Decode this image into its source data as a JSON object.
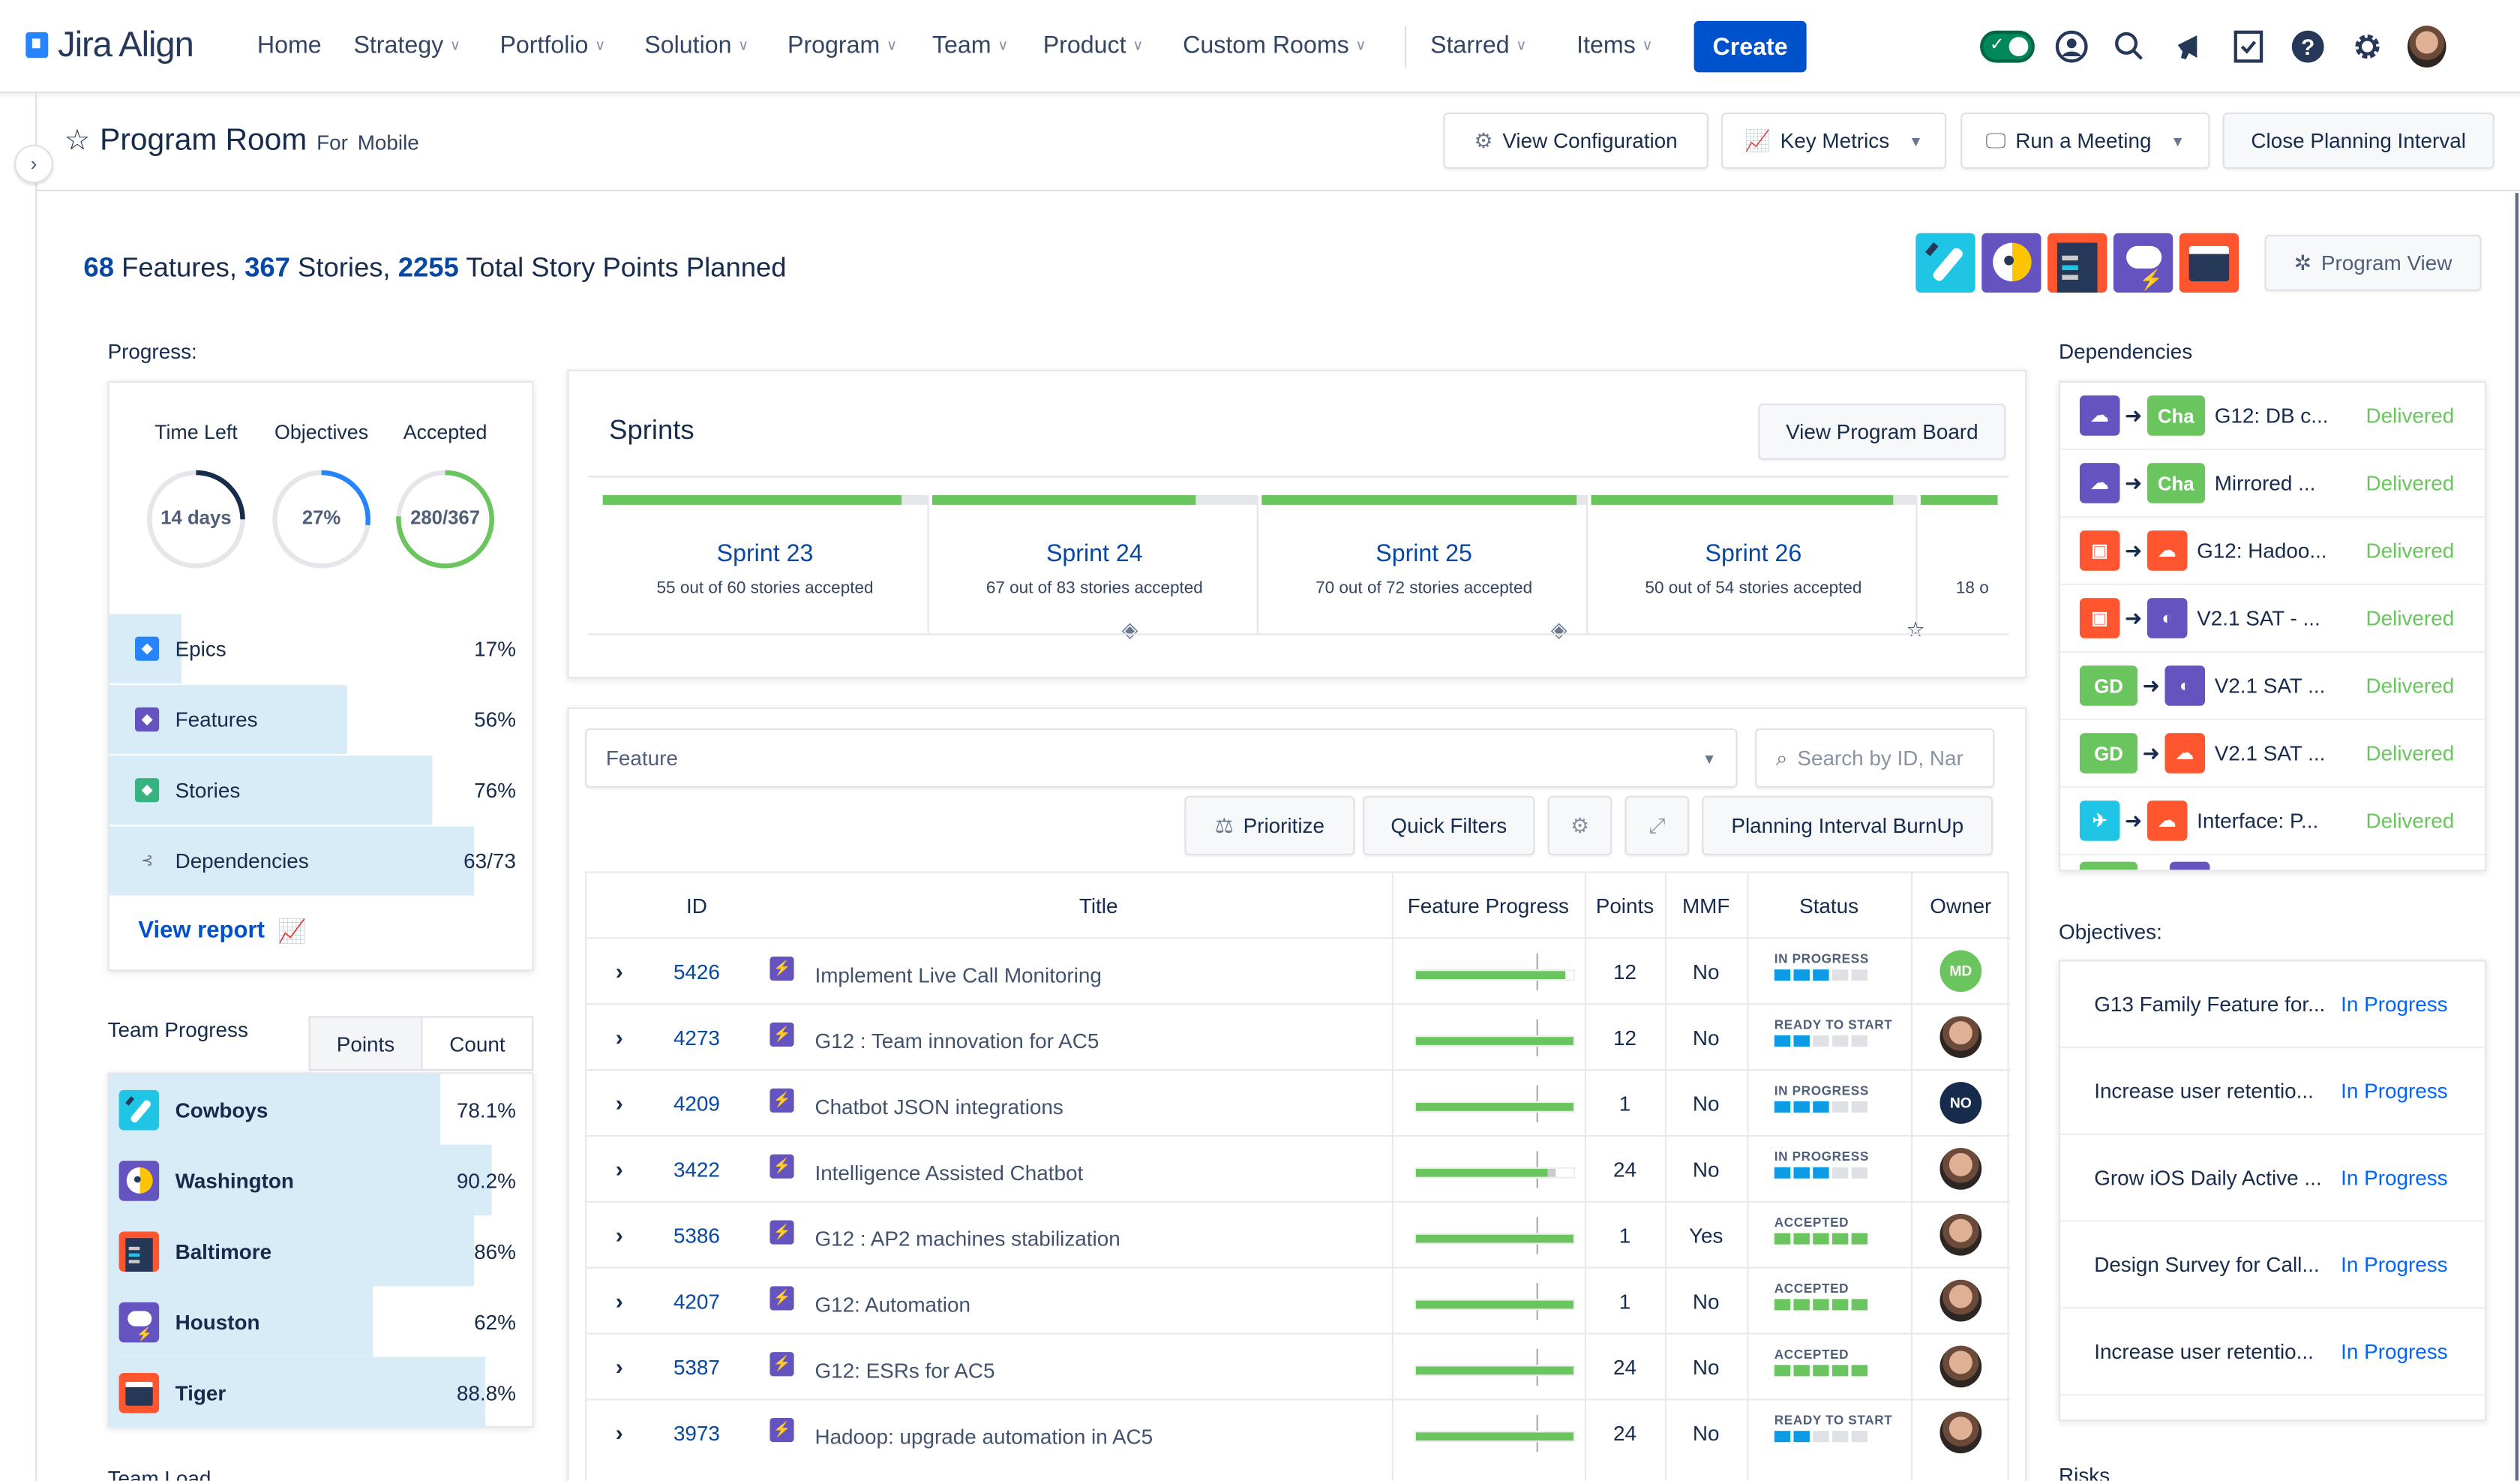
{
  "nav": {
    "logo": "Jira Align",
    "items": [
      "Home",
      "Strategy",
      "Portfolio",
      "Solution",
      "Program",
      "Team",
      "Product",
      "Custom Rooms",
      "Starred",
      "Items"
    ],
    "create": "Create"
  },
  "header": {
    "title": "Program Room",
    "for_label": "For",
    "for_value": "Mobile",
    "buttons": {
      "view_config": "View Configuration",
      "key_metrics": "Key Metrics",
      "run_meeting": "Run a Meeting",
      "close_pi": "Close Planning Interval"
    }
  },
  "summary": {
    "features": "68",
    "features_label": " Features, ",
    "stories": "367",
    "stories_label": " Stories, ",
    "points": "2255",
    "points_label": " Total Story Points Planned"
  },
  "program_view": "Program View",
  "progress": {
    "label": "Progress:",
    "rings": [
      {
        "label": "Time Left",
        "value": "14 days",
        "fraction": 0.25,
        "color": "#172b4d"
      },
      {
        "label": "Objectives",
        "value": "27%",
        "fraction": 0.27,
        "color": "#2684ff"
      },
      {
        "label": "Accepted",
        "value": "280/367",
        "fraction": 0.76,
        "color": "#6bc55e"
      }
    ],
    "rows": [
      {
        "label": "Epics",
        "value": "17%",
        "fraction": 0.17,
        "color": "#2684ff",
        "icon": "epic-icon"
      },
      {
        "label": "Features",
        "value": "56%",
        "fraction": 0.56,
        "color": "#6554c0",
        "icon": "feature-icon"
      },
      {
        "label": "Stories",
        "value": "76%",
        "fraction": 0.76,
        "color": "#36b37e",
        "icon": "story-icon"
      },
      {
        "label": "Dependencies",
        "value": "63/73",
        "fraction": 0.86,
        "color": "#8993a4",
        "icon": "dependency-icon"
      }
    ],
    "view_report": "View report"
  },
  "team_progress": {
    "label": "Team Progress",
    "tabs": [
      "Points",
      "Count"
    ],
    "teams": [
      {
        "name": "Cowboys",
        "value": "78.1%",
        "fraction": 0.781,
        "color": "#1ec5e5"
      },
      {
        "name": "Washington",
        "value": "90.2%",
        "fraction": 0.902,
        "color": "#6554c0"
      },
      {
        "name": "Baltimore",
        "value": "86%",
        "fraction": 0.86,
        "color": "#ff5630"
      },
      {
        "name": "Houston",
        "value": "62%",
        "fraction": 0.62,
        "color": "#6554c0"
      },
      {
        "name": "Tiger",
        "value": "88.8%",
        "fraction": 0.888,
        "color": "#ff5630"
      }
    ]
  },
  "team_load_label": "Team Load",
  "sprints": {
    "title": "Sprints",
    "view_board": "View Program Board",
    "items": [
      {
        "name": "Sprint 23",
        "sub": "55 out of 60 stories accepted",
        "fraction": 0.92
      },
      {
        "name": "Sprint 24",
        "sub": "67 out of 83 stories accepted",
        "fraction": 0.81
      },
      {
        "name": "Sprint 25",
        "sub": "70 out of 72 stories accepted",
        "fraction": 0.97
      },
      {
        "name": "Sprint 26",
        "sub": "50 out of 54 stories accepted",
        "fraction": 0.93
      },
      {
        "name": "",
        "sub": "18 o",
        "fraction": 1
      }
    ]
  },
  "features": {
    "select_value": "Feature",
    "search_placeholder": "Search by ID, Nar",
    "buttons": {
      "prioritize": "Prioritize",
      "quick_filters": "Quick Filters",
      "burnup": "Planning Interval BurnUp"
    },
    "columns": [
      "ID",
      "Title",
      "Feature Progress",
      "Points",
      "MMF",
      "Status",
      "Owner"
    ],
    "rows": [
      {
        "id": "5426",
        "title": "Implement Live Call Monitoring",
        "progress": 0.95,
        "extra": 0,
        "points": "12",
        "mmf": "No",
        "status": "IN PROGRESS",
        "segs": 3,
        "owner": "MD",
        "owner_color": "#6bc55e"
      },
      {
        "id": "4273",
        "title": "G12 : Team innovation for AC5",
        "progress": 1,
        "extra": 0,
        "points": "12",
        "mmf": "No",
        "status": "READY TO START",
        "segs": 2,
        "owner": "",
        "owner_color": ""
      },
      {
        "id": "4209",
        "title": "Chatbot JSON integrations",
        "progress": 1,
        "extra": 0,
        "points": "1",
        "mmf": "No",
        "status": "IN PROGRESS",
        "segs": 3,
        "owner": "NO",
        "owner_color": "#172b4d"
      },
      {
        "id": "3422",
        "title": "Intelligence Assisted Chatbot",
        "progress": 0.84,
        "extra": 0.05,
        "points": "24",
        "mmf": "No",
        "status": "IN PROGRESS",
        "segs": 3,
        "owner": "",
        "owner_color": ""
      },
      {
        "id": "5386",
        "title": "G12 : AP2 machines stabilization",
        "progress": 1,
        "extra": 0,
        "points": "1",
        "mmf": "Yes",
        "status": "ACCEPTED",
        "segs": 5,
        "owner": "",
        "owner_color": ""
      },
      {
        "id": "4207",
        "title": "G12: Automation",
        "progress": 1,
        "extra": 0,
        "points": "1",
        "mmf": "No",
        "status": "ACCEPTED",
        "segs": 5,
        "owner": "",
        "owner_color": ""
      },
      {
        "id": "5387",
        "title": "G12: ESRs for AC5",
        "progress": 1,
        "extra": 0,
        "points": "24",
        "mmf": "No",
        "status": "ACCEPTED",
        "segs": 5,
        "owner": "",
        "owner_color": ""
      },
      {
        "id": "3973",
        "title": "Hadoop: upgrade automation in AC5",
        "progress": 1,
        "extra": 0,
        "points": "24",
        "mmf": "No",
        "status": "READY TO START",
        "segs": 2,
        "owner": "",
        "owner_color": ""
      }
    ]
  },
  "dependencies": {
    "label": "Dependencies",
    "rows": [
      {
        "from": "#6554c0",
        "to_text": "Cha",
        "to": "#6bc55e",
        "title": "G12: DB c...",
        "status": "Delivered"
      },
      {
        "from": "#6554c0",
        "to_text": "Cha",
        "to": "#6bc55e",
        "title": "Mirrored ...",
        "status": "Delivered"
      },
      {
        "from": "#ff5630",
        "to_text": "",
        "to": "#ff5630",
        "title": "G12: Hadoo...",
        "status": "Delivered"
      },
      {
        "from": "#ff5630",
        "to_text": "",
        "to": "#6554c0",
        "title": "V2.1 SAT - ...",
        "status": "Delivered"
      },
      {
        "from": "#6bc55e",
        "from_text": "GD",
        "to_text": "",
        "to": "#6554c0",
        "title": "V2.1 SAT ...",
        "status": "Delivered"
      },
      {
        "from": "#6bc55e",
        "from_text": "GD",
        "to_text": "",
        "to": "#ff5630",
        "title": "V2.1 SAT ...",
        "status": "Delivered"
      },
      {
        "from": "#1ec5e5",
        "to_text": "",
        "to": "#ff5630",
        "title": "Interface: P...",
        "status": "Delivered"
      }
    ],
    "status_color": "#6bc55e"
  },
  "objectives": {
    "label": "Objectives:",
    "rows": [
      {
        "title": "G13 Family Feature for...",
        "status": "In Progress"
      },
      {
        "title": "Increase user retentio...",
        "status": "In Progress"
      },
      {
        "title": "Grow iOS Daily Active ...",
        "status": "In Progress"
      },
      {
        "title": "Design Survey for Call...",
        "status": "In Progress"
      },
      {
        "title": "Increase user retentio...",
        "status": "In Progress"
      }
    ]
  },
  "risks_label": "Risks",
  "colors": {
    "brand": "#0052cc",
    "link": "#0747a6",
    "green": "#6bc55e",
    "blue_seg": "#0d9be6"
  }
}
